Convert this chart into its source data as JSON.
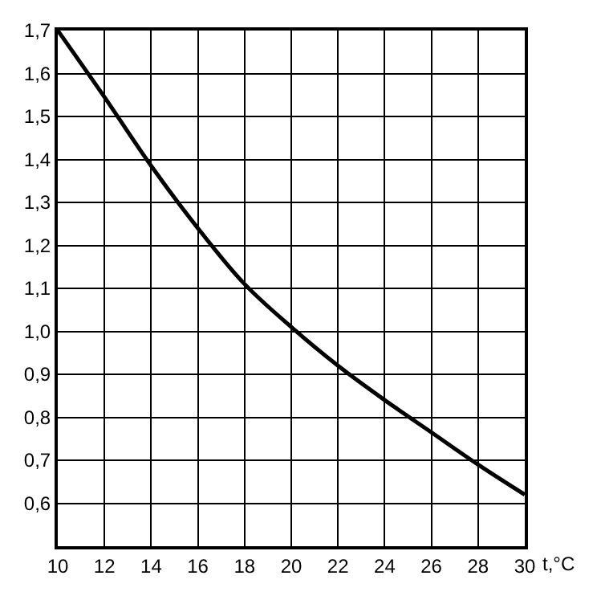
{
  "chart_data": {
    "type": "line",
    "xlabel": "t,°C",
    "x": [
      10,
      12,
      14,
      16,
      18,
      20,
      22,
      24,
      26,
      28,
      30
    ],
    "series": [
      {
        "color": "#000000",
        "values": [
          1.7,
          1.545,
          1.385,
          1.24,
          1.11,
          1.01,
          0.92,
          0.84,
          0.765,
          0.69,
          0.62
        ]
      }
    ],
    "xlim": [
      10,
      30
    ],
    "xticks": [
      10,
      12,
      14,
      16,
      18,
      20,
      22,
      24,
      26,
      28,
      30
    ],
    "ylim": [
      0.5,
      1.7
    ],
    "yticks": [
      {
        "value": 0.6,
        "label": "0,6"
      },
      {
        "value": 0.7,
        "label": "0,7"
      },
      {
        "value": 0.8,
        "label": "0,8"
      },
      {
        "value": 0.9,
        "label": "0,9"
      },
      {
        "value": 1.0,
        "label": "1,0"
      },
      {
        "value": 1.1,
        "label": "1,1"
      },
      {
        "value": 1.2,
        "label": "1,2"
      },
      {
        "value": 1.3,
        "label": "1,3"
      },
      {
        "value": 1.4,
        "label": "1,4"
      },
      {
        "value": 1.5,
        "label": "1,5"
      },
      {
        "value": 1.6,
        "label": "1,6"
      },
      {
        "value": 1.7,
        "label": "1,7"
      }
    ],
    "grid": true,
    "legend": false,
    "marker": "none",
    "line_style": "solid"
  }
}
